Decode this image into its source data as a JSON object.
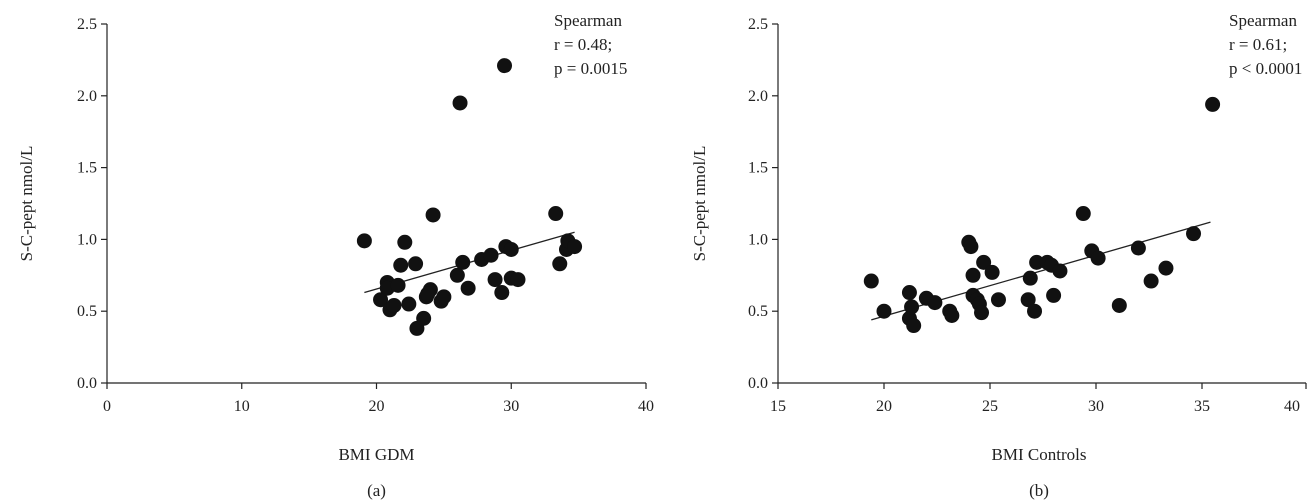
{
  "chart_data": [
    {
      "type": "scatter",
      "panel_label": "(a)",
      "xlabel": "BMI GDM",
      "ylabel": "S-C-pept nmol/L",
      "xlim": [
        0,
        40
      ],
      "ylim": [
        0,
        2.5
      ],
      "x_ticks": [
        "0",
        "10",
        "20",
        "30",
        "40"
      ],
      "y_ticks": [
        "0.0",
        "0.5",
        "1.0",
        "1.5",
        "2.0",
        "2.5"
      ],
      "annotation": {
        "method": "Spearman",
        "r_text": "r = 0.48;",
        "p_text": "p = 0.0015"
      },
      "points": [
        [
          19.1,
          0.99
        ],
        [
          20.3,
          0.58
        ],
        [
          20.8,
          0.7
        ],
        [
          20.8,
          0.66
        ],
        [
          21.0,
          0.51
        ],
        [
          21.3,
          0.54
        ],
        [
          21.6,
          0.68
        ],
        [
          21.8,
          0.82
        ],
        [
          22.1,
          0.98
        ],
        [
          22.4,
          0.55
        ],
        [
          22.9,
          0.83
        ],
        [
          23.0,
          0.38
        ],
        [
          23.5,
          0.45
        ],
        [
          23.7,
          0.6
        ],
        [
          24.0,
          0.65
        ],
        [
          23.8,
          0.62
        ],
        [
          24.2,
          1.17
        ],
        [
          24.8,
          0.57
        ],
        [
          25.0,
          0.6
        ],
        [
          26.0,
          0.75
        ],
        [
          26.2,
          1.95
        ],
        [
          26.4,
          0.84
        ],
        [
          26.8,
          0.66
        ],
        [
          27.8,
          0.86
        ],
        [
          28.5,
          0.89
        ],
        [
          28.8,
          0.72
        ],
        [
          29.3,
          0.63
        ],
        [
          29.5,
          2.21
        ],
        [
          29.6,
          0.95
        ],
        [
          30.0,
          0.73
        ],
        [
          30.0,
          0.93
        ],
        [
          30.5,
          0.72
        ],
        [
          33.3,
          1.18
        ],
        [
          33.6,
          0.83
        ],
        [
          34.1,
          0.93
        ],
        [
          34.2,
          0.99
        ],
        [
          34.7,
          0.95
        ]
      ],
      "fit_line": [
        [
          19.1,
          0.63
        ],
        [
          34.7,
          1.05
        ]
      ]
    },
    {
      "type": "scatter",
      "panel_label": "(b)",
      "xlabel": "BMI Controls",
      "ylabel": "S-C-pept nmol/L",
      "xlim": [
        15,
        40
      ],
      "ylim": [
        0,
        2.5
      ],
      "x_ticks": [
        "15",
        "20",
        "25",
        "30",
        "35",
        "40"
      ],
      "y_ticks": [
        "0.0",
        "0.5",
        "1.0",
        "1.5",
        "2.0",
        "2.5"
      ],
      "annotation": {
        "method": "Spearman",
        "r_text": "r = 0.61;",
        "p_text": "p < 0.0001"
      },
      "points": [
        [
          19.4,
          0.71
        ],
        [
          20.0,
          0.5
        ],
        [
          21.2,
          0.63
        ],
        [
          21.2,
          0.45
        ],
        [
          21.3,
          0.53
        ],
        [
          21.4,
          0.4
        ],
        [
          22.0,
          0.59
        ],
        [
          22.4,
          0.56
        ],
        [
          23.1,
          0.5
        ],
        [
          23.2,
          0.47
        ],
        [
          24.0,
          0.98
        ],
        [
          24.1,
          0.95
        ],
        [
          24.2,
          0.75
        ],
        [
          24.2,
          0.61
        ],
        [
          24.4,
          0.58
        ],
        [
          24.5,
          0.55
        ],
        [
          24.6,
          0.49
        ],
        [
          24.7,
          0.84
        ],
        [
          25.1,
          0.77
        ],
        [
          25.4,
          0.58
        ],
        [
          26.8,
          0.58
        ],
        [
          26.9,
          0.73
        ],
        [
          27.1,
          0.5
        ],
        [
          27.2,
          0.84
        ],
        [
          27.7,
          0.84
        ],
        [
          27.9,
          0.82
        ],
        [
          28.0,
          0.61
        ],
        [
          28.3,
          0.78
        ],
        [
          29.4,
          1.18
        ],
        [
          29.8,
          0.92
        ],
        [
          30.1,
          0.87
        ],
        [
          31.1,
          0.54
        ],
        [
          32.0,
          0.94
        ],
        [
          32.6,
          0.71
        ],
        [
          33.3,
          0.8
        ],
        [
          34.6,
          1.04
        ],
        [
          35.5,
          1.94
        ]
      ],
      "fit_line": [
        [
          19.4,
          0.44
        ],
        [
          35.4,
          1.12
        ]
      ]
    }
  ]
}
